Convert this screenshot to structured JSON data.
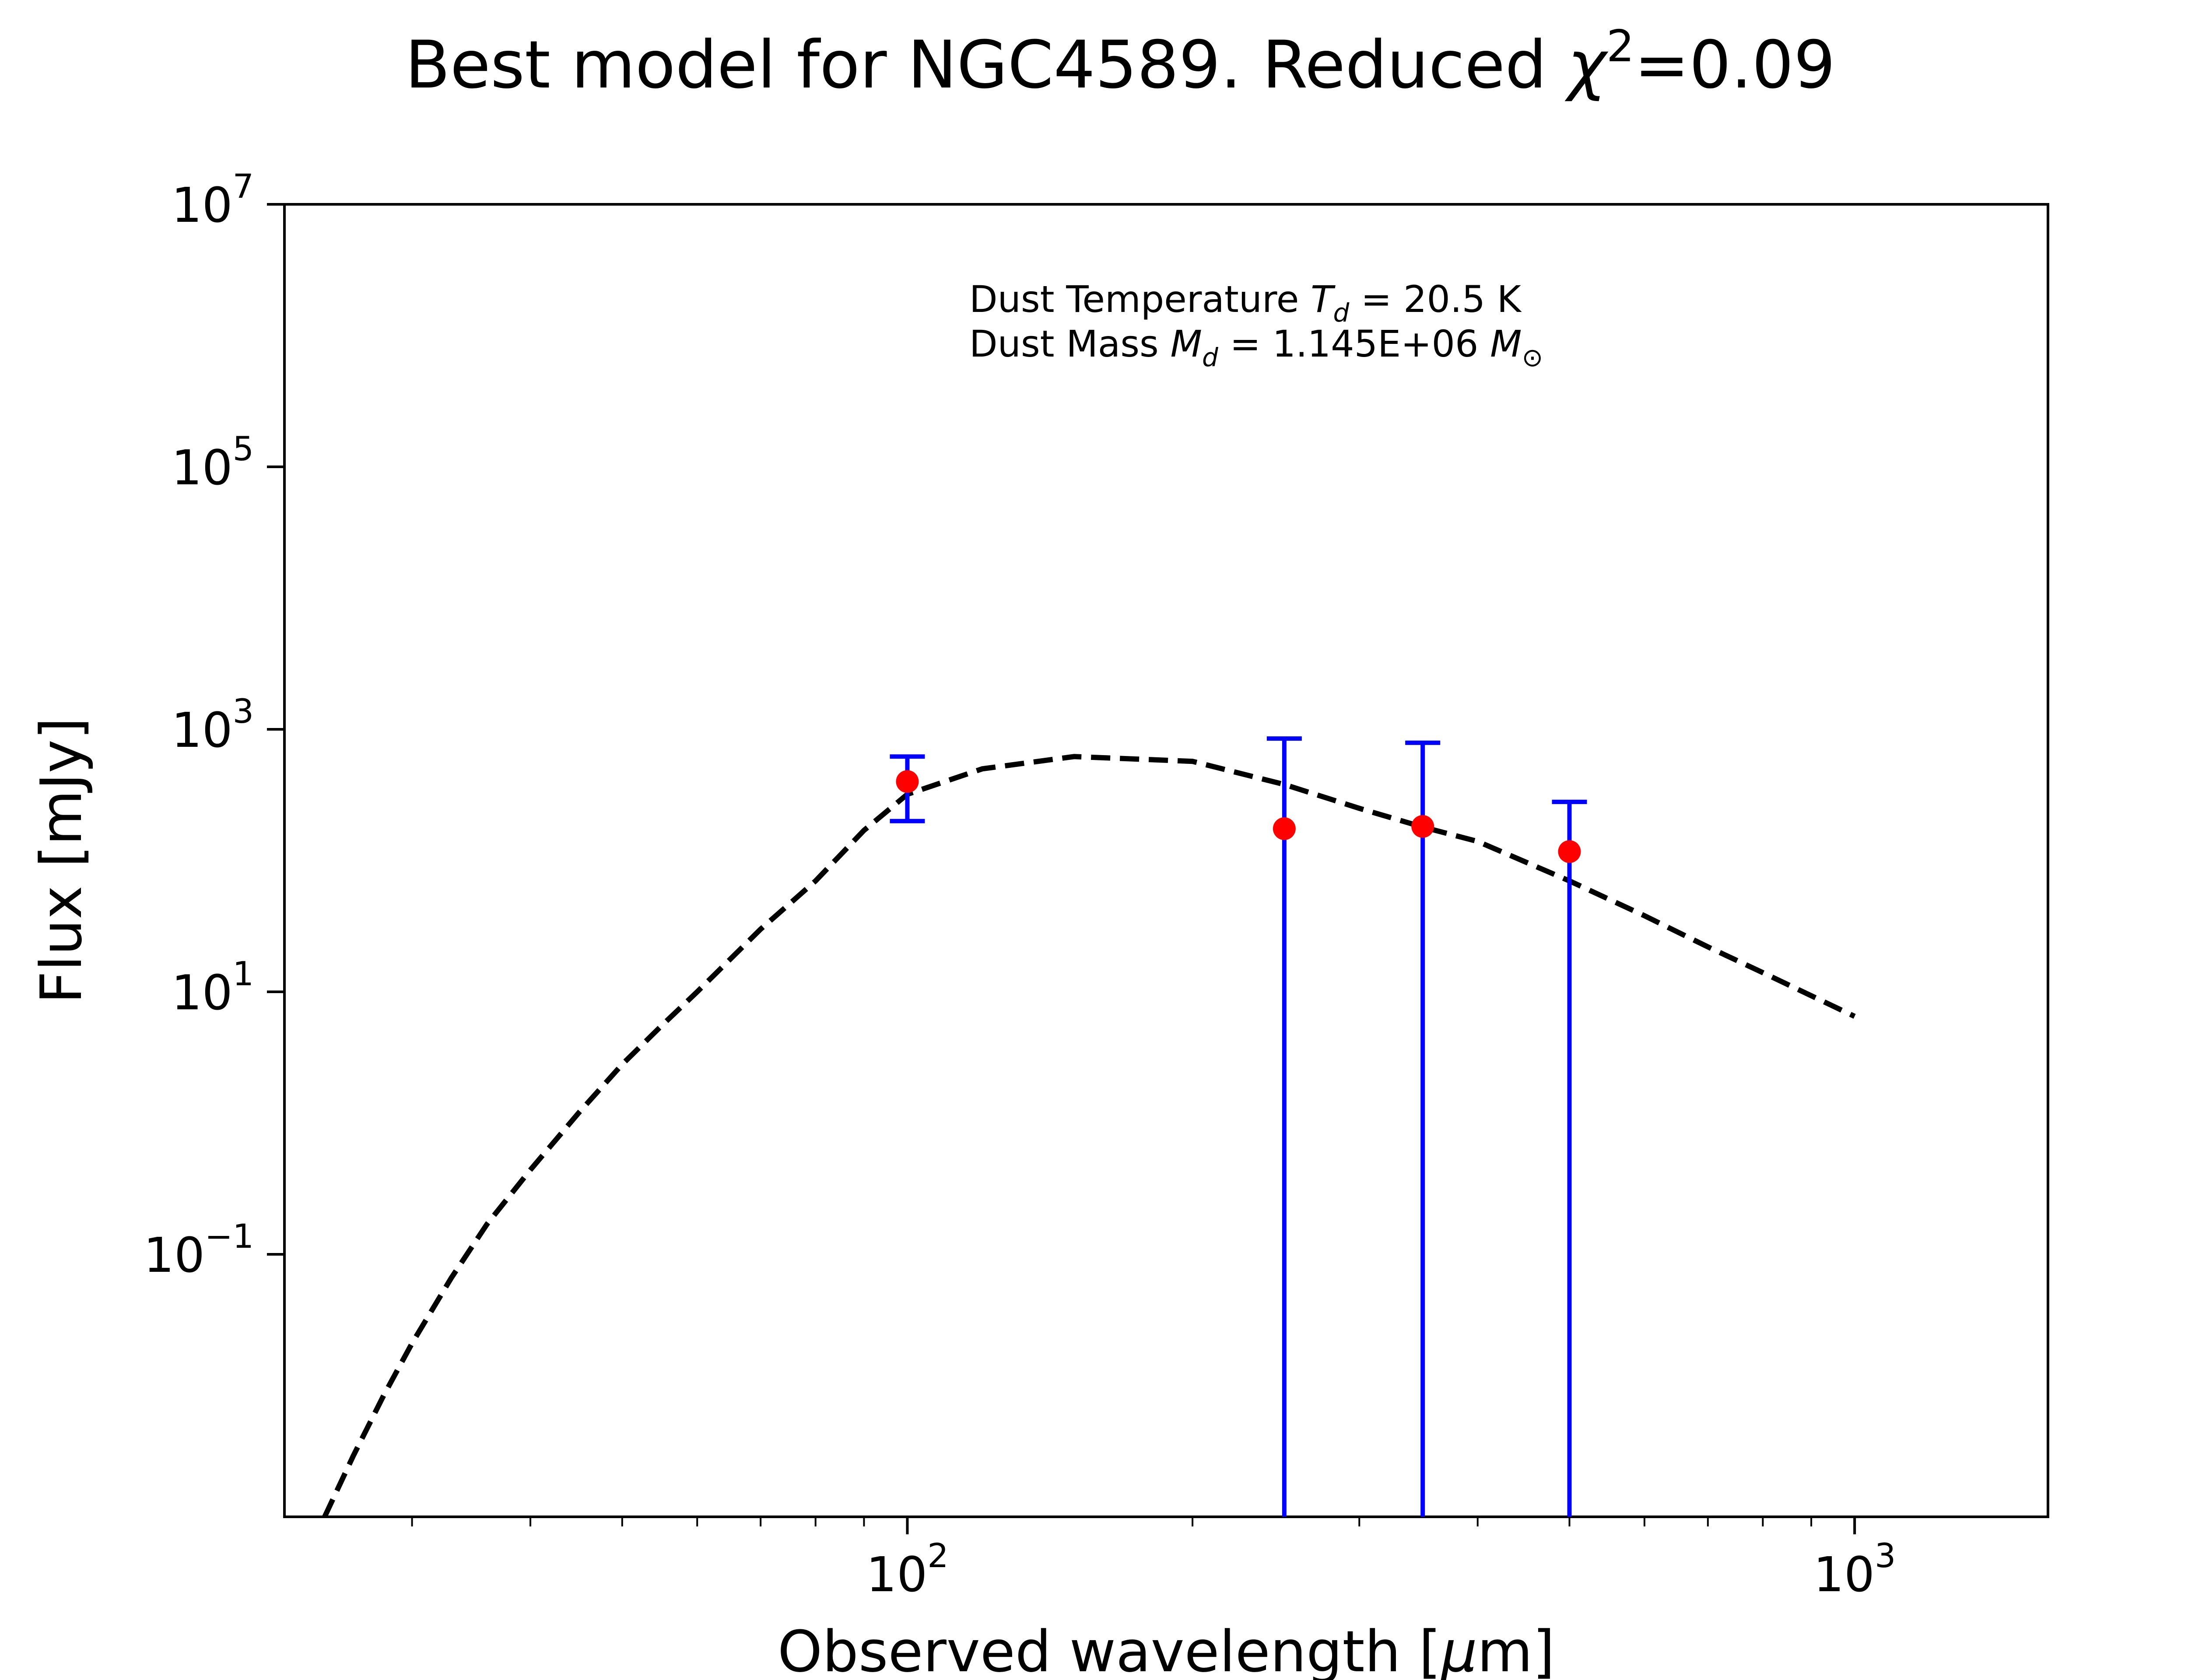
{
  "chart_data": {
    "type": "scatter",
    "title": "Best model for NGC4589. Reduced χ²=0.09",
    "title_parts": {
      "main": "Best model for NGC4589. Reduced ",
      "chi": "χ",
      "sup": "2",
      "tail": "=0.09"
    },
    "xlabel": "Observed wavelength [μm]",
    "xlabel_parts": {
      "pre": "Observed wavelength [",
      "mu": "μ",
      "post": "m]"
    },
    "ylabel": "Flux [mJy]",
    "xscale": "log",
    "yscale": "log",
    "xlim": [
      22,
      1600
    ],
    "ylim": [
      0.001,
      10000000
    ],
    "xticks": [
      {
        "value": 100,
        "base": "10",
        "exp": "2"
      },
      {
        "value": 1000,
        "base": "10",
        "exp": "3"
      }
    ],
    "yticks": [
      {
        "value": 0.1,
        "base": "10",
        "exp": "−1"
      },
      {
        "value": 10,
        "base": "10",
        "exp": "1"
      },
      {
        "value": 1000,
        "base": "10",
        "exp": "3"
      },
      {
        "value": 100000,
        "base": "10",
        "exp": "5"
      },
      {
        "value": 10000000,
        "base": "10",
        "exp": "7"
      }
    ],
    "annotation": {
      "line1": {
        "pre": "Dust Temperature ",
        "sym": "T",
        "sub": "d",
        "post": " = 20.5 K"
      },
      "line2": {
        "pre": "Dust Mass ",
        "sym": "M",
        "sub": "d",
        "mid": " = 1.145E+06 ",
        "unit": "M",
        "unit_sub": "⊙"
      }
    },
    "observations": [
      {
        "x": 100,
        "y": 400,
        "yerr_low": 200,
        "yerr_high": 620
      },
      {
        "x": 250,
        "y": 175,
        "yerr_low": 0.001,
        "yerr_high": 850
      },
      {
        "x": 350,
        "y": 182,
        "yerr_low": 0.001,
        "yerr_high": 790
      },
      {
        "x": 500,
        "y": 117,
        "yerr_low": 0.001,
        "yerr_high": 280
      }
    ],
    "model": {
      "x": [
        24,
        26,
        28,
        30,
        33,
        36,
        40,
        45,
        50,
        55,
        60,
        70,
        80,
        90,
        100,
        120,
        150,
        200,
        250,
        300,
        350,
        400,
        500,
        600,
        700,
        800,
        1000
      ],
      "y": [
        0.00085,
        0.0029,
        0.0084,
        0.021,
        0.066,
        0.17,
        0.44,
        1.2,
        2.8,
        5.5,
        10,
        30,
        70,
        170,
        320,
        500,
        620,
        570,
        380,
        250,
        180,
        140,
        70,
        38,
        22,
        14,
        6.5
      ]
    },
    "colors": {
      "points": "#ff0000",
      "errorbars": "#0000ff",
      "model": "#000000",
      "axes": "#000000"
    },
    "grid": false
  }
}
